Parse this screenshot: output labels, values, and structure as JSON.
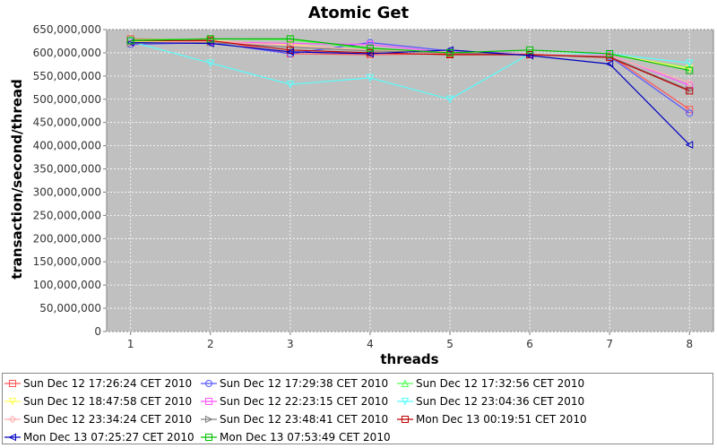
{
  "chart_data": {
    "type": "line",
    "title": "Atomic Get",
    "xlabel": "threads",
    "ylabel": "transaction/second/thread",
    "x": [
      1,
      2,
      3,
      4,
      5,
      6,
      7,
      8
    ],
    "xlim": [
      0.7,
      8.3
    ],
    "ylim": [
      0,
      650000000
    ],
    "yticks": [
      0,
      50000000,
      100000000,
      150000000,
      200000000,
      250000000,
      300000000,
      350000000,
      400000000,
      450000000,
      500000000,
      550000000,
      600000000,
      650000000
    ],
    "ytick_labels": [
      "0",
      "50,000,000",
      "100,000,000",
      "150,000,000",
      "200,000,000",
      "250,000,000",
      "300,000,000",
      "350,000,000",
      "400,000,000",
      "450,000,000",
      "500,000,000",
      "550,000,000",
      "600,000,000",
      "650,000,000"
    ],
    "xtick_labels": [
      "1",
      "2",
      "3",
      "4",
      "5",
      "6",
      "7",
      "8"
    ],
    "grid": true,
    "legend_position": "bottom",
    "background": "#c0c0c0",
    "series": [
      {
        "name": "Sun Dec 12 17:26:24 CET 2010",
        "color": "#ff5555",
        "marker": "square",
        "values": [
          630000000,
          628000000,
          598000000,
          596000000,
          598000000,
          596000000,
          595000000,
          478000000
        ]
      },
      {
        "name": "Sun Dec 12 17:29:38 CET 2010",
        "color": "#5555ff",
        "marker": "circle",
        "values": [
          618000000,
          622000000,
          598000000,
          622000000,
          604000000,
          598000000,
          592000000,
          470000000
        ]
      },
      {
        "name": "Sun Dec 12 17:32:56 CET 2010",
        "color": "#55ff55",
        "marker": "triangle-up",
        "values": [
          628000000,
          630000000,
          628000000,
          608000000,
          600000000,
          598000000,
          596000000,
          568000000
        ]
      },
      {
        "name": "Sun Dec 12 18:47:58 CET 2010",
        "color": "#ffff55",
        "marker": "triangle-down",
        "values": [
          624000000,
          626000000,
          618000000,
          604000000,
          600000000,
          598000000,
          598000000,
          566000000
        ]
      },
      {
        "name": "Sun Dec 12 22:23:15 CET 2010",
        "color": "#ff55ff",
        "marker": "square",
        "values": [
          622000000,
          624000000,
          620000000,
          618000000,
          600000000,
          598000000,
          596000000,
          530000000
        ]
      },
      {
        "name": "Sun Dec 12 23:04:36 CET 2010",
        "color": "#55ffff",
        "marker": "triangle-down",
        "values": [
          624000000,
          578000000,
          532000000,
          546000000,
          500000000,
          598000000,
          598000000,
          578000000
        ]
      },
      {
        "name": "Sun Dec 12 23:34:24 CET 2010",
        "color": "#ffafaf",
        "marker": "diamond",
        "values": [
          622000000,
          624000000,
          616000000,
          606000000,
          602000000,
          598000000,
          594000000,
          536000000
        ]
      },
      {
        "name": "Sun Dec 12 23:48:41 CET 2010",
        "color": "#808080",
        "marker": "triangle-right",
        "values": [
          620000000,
          622000000,
          612000000,
          604000000,
          600000000,
          596000000,
          592000000,
          520000000
        ]
      },
      {
        "name": "Mon Dec 13 00:19:51 CET 2010",
        "color": "#c00000",
        "marker": "square",
        "values": [
          626000000,
          626000000,
          606000000,
          600000000,
          596000000,
          596000000,
          590000000,
          518000000
        ]
      },
      {
        "name": "Mon Dec 13 07:25:27 CET 2010",
        "color": "#0000c0",
        "marker": "triangle-left",
        "values": [
          622000000,
          620000000,
          602000000,
          598000000,
          606000000,
          594000000,
          576000000,
          402000000
        ]
      },
      {
        "name": "Mon Dec 13 07:53:49 CET 2010",
        "color": "#00c000",
        "marker": "square",
        "values": [
          626000000,
          630000000,
          630000000,
          610000000,
          600000000,
          606000000,
          598000000,
          562000000
        ]
      }
    ]
  }
}
